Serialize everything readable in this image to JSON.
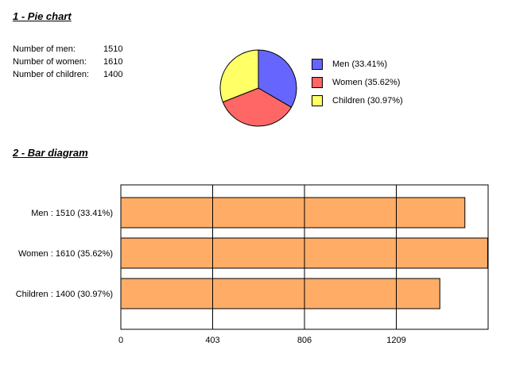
{
  "pie_section": {
    "title": "1 - Pie chart",
    "stats": [
      {
        "label": "Number of men:",
        "value": "1510"
      },
      {
        "label": "Number of women:",
        "value": "1610"
      },
      {
        "label": "Number of children:",
        "value": "1400"
      }
    ]
  },
  "bar_section": {
    "title": "2 - Bar diagram"
  },
  "chart_data": [
    {
      "type": "pie",
      "title": "",
      "categories": [
        "Men",
        "Women",
        "Children"
      ],
      "values": [
        1510,
        1610,
        1400
      ],
      "percentages": [
        33.41,
        35.62,
        30.97
      ],
      "legend": [
        "Men (33.41%)",
        "Women (35.62%)",
        "Children (30.97%)"
      ],
      "colors": [
        "#6666ff",
        "#ff6666",
        "#ffff66"
      ],
      "legend_position": "right"
    },
    {
      "type": "bar",
      "orientation": "horizontal",
      "title": "",
      "categories": [
        "Men : 1510 (33.41%)",
        "Women : 1610 (35.62%)",
        "Children : 1400 (30.97%)"
      ],
      "values": [
        1510,
        1610,
        1400
      ],
      "xticks": [
        "0",
        "403",
        "806",
        "1209"
      ],
      "xlim": [
        0,
        1612
      ],
      "bar_color": "#ffad66",
      "grid": true,
      "xlabel": "",
      "ylabel": ""
    }
  ]
}
